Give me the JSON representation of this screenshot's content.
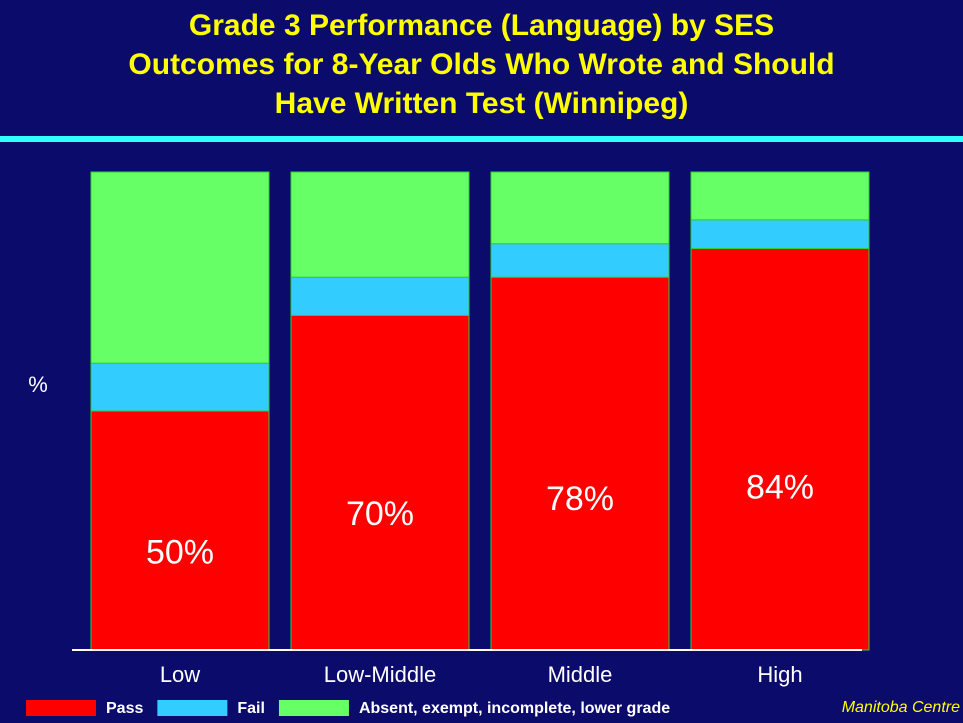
{
  "chart_data": {
    "type": "stacked_bar",
    "title": "Grade 3 Performance (Language) by SES\nOutcomes for 8-Year Olds Who Wrote and Should\nHave Written Test (Winnipeg)",
    "y_label": "%",
    "categories": [
      "Low",
      "Low-Middle",
      "Middle",
      "High"
    ],
    "series": [
      {
        "name": "Pass",
        "color": "#ff0000",
        "values": [
          50,
          70,
          78,
          84
        ],
        "value_labels": [
          "50%",
          "70%",
          "78%",
          "84%"
        ]
      },
      {
        "name": "Fail",
        "color": "#33ccff",
        "values": [
          10,
          8,
          7,
          6
        ]
      },
      {
        "name": "Absent, exempt, incomplete, lower grade",
        "color": "#66ff66",
        "values": [
          40,
          22,
          15,
          10
        ]
      }
    ],
    "ylim": [
      0,
      100
    ],
    "legend": "bottom",
    "source": "Manitoba Centre"
  }
}
